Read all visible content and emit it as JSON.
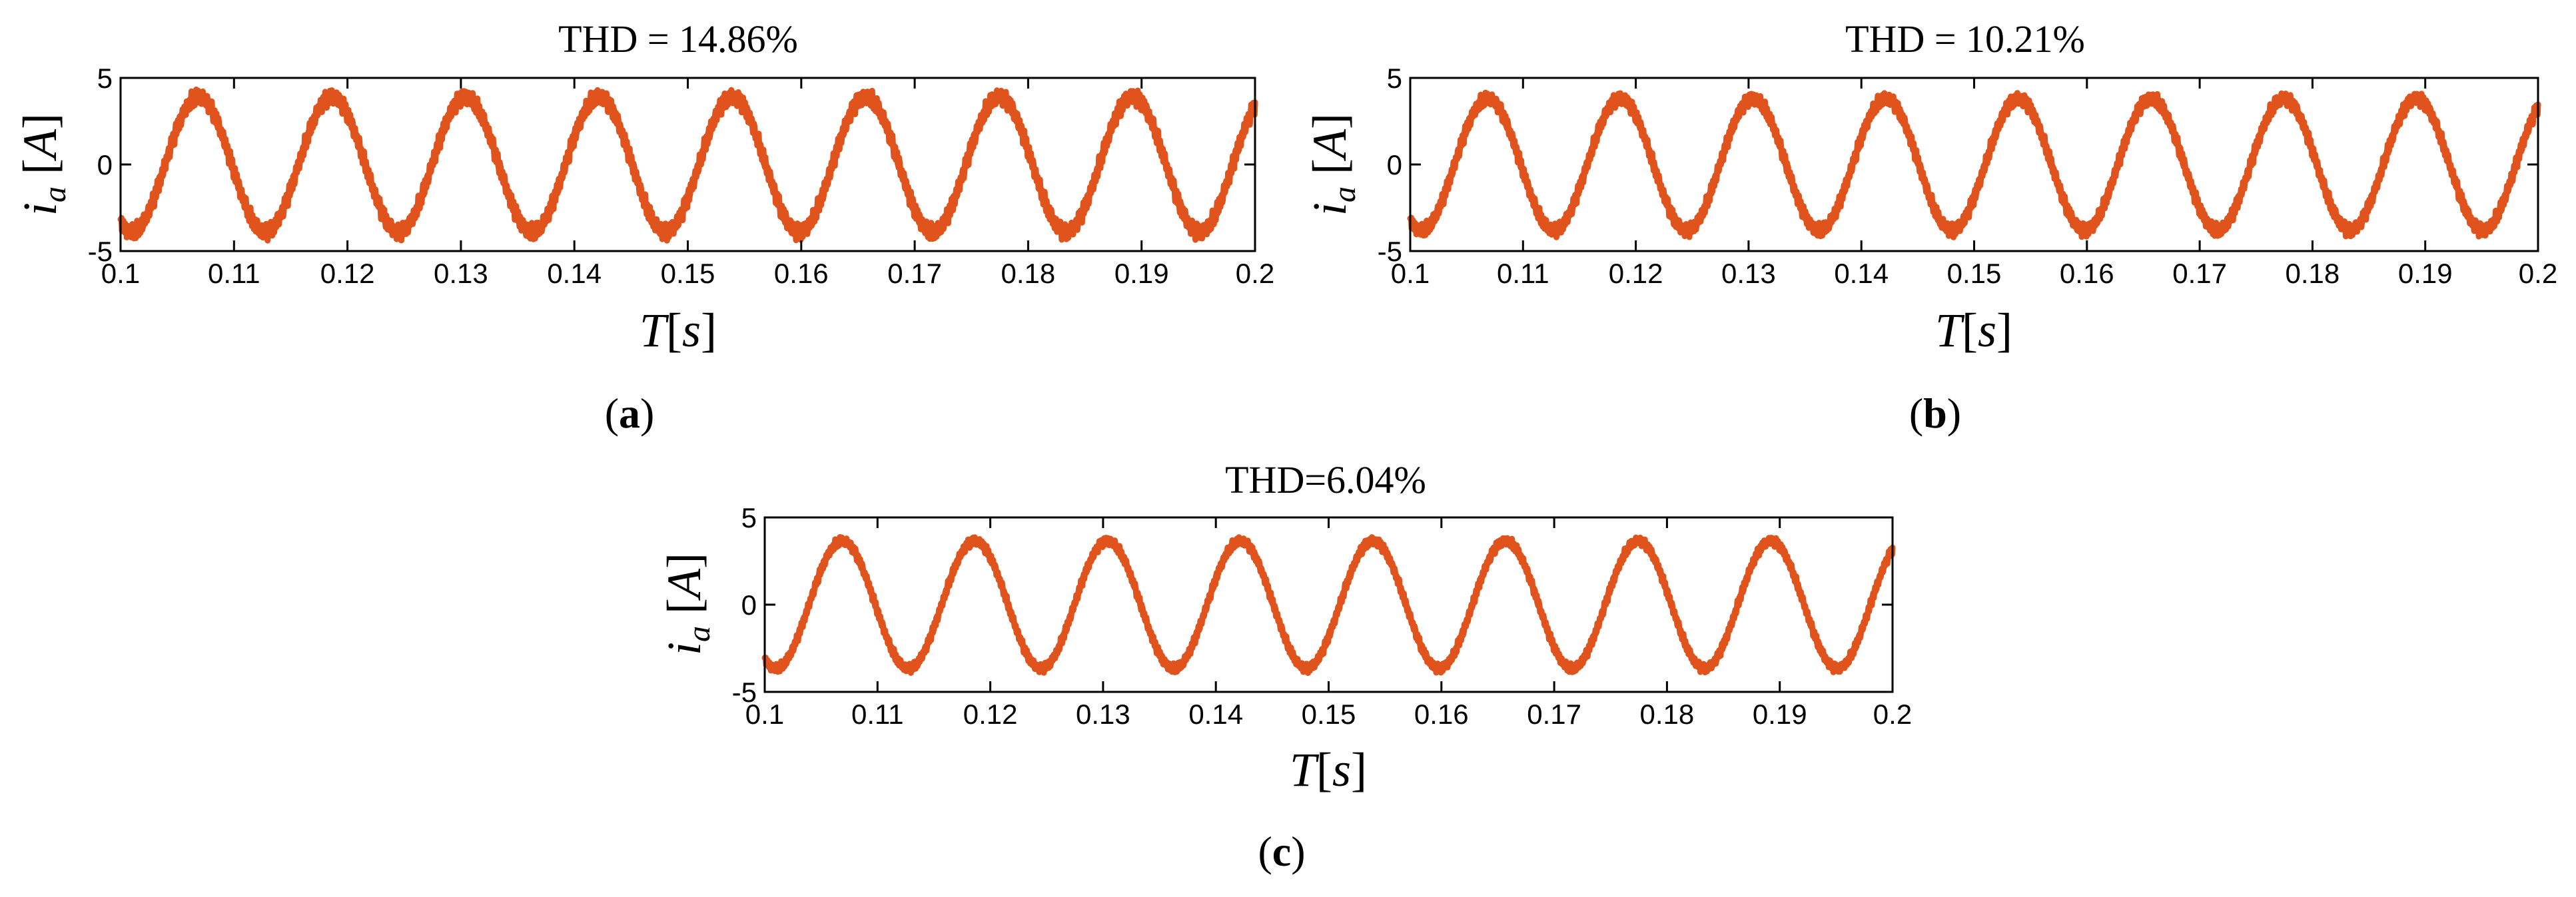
{
  "chart_data": [
    {
      "type": "line",
      "panel": "a",
      "title": "THD = 14.86%",
      "xlabel": "T[s]",
      "ylabel": "i_a [A]",
      "xlim": [
        0.1,
        0.2
      ],
      "ylim": [
        -5,
        5
      ],
      "xticks": [
        "0.1",
        "0.11",
        "0.12",
        "0.13",
        "0.14",
        "0.15",
        "0.16",
        "0.17",
        "0.18",
        "0.19",
        "0.2"
      ],
      "yticks": [
        "5",
        "0",
        "-5"
      ],
      "series": [
        {
          "name": "i_a",
          "frequency_hz": 85,
          "amplitude": 3.9,
          "ripple": 0.55,
          "phase_at_start_deg": 240
        }
      ]
    },
    {
      "type": "line",
      "panel": "b",
      "title": "THD = 10.21%",
      "xlabel": "T[s]",
      "ylabel": "i_a [A]",
      "xlim": [
        0.1,
        0.2
      ],
      "ylim": [
        -5,
        5
      ],
      "xticks": [
        "0.1",
        "0.11",
        "0.12",
        "0.13",
        "0.14",
        "0.15",
        "0.16",
        "0.17",
        "0.18",
        "0.19",
        "0.2"
      ],
      "yticks": [
        "5",
        "0",
        "-5"
      ],
      "series": [
        {
          "name": "i_a",
          "frequency_hz": 85,
          "amplitude": 3.8,
          "ripple": 0.45,
          "phase_at_start_deg": 240
        }
      ]
    },
    {
      "type": "line",
      "panel": "c",
      "title": "THD=6.04%",
      "xlabel": "T[s]",
      "ylabel": "i_a [A]",
      "xlim": [
        0.1,
        0.2
      ],
      "ylim": [
        -5,
        5
      ],
      "xticks": [
        "0.1",
        "0.11",
        "0.12",
        "0.13",
        "0.14",
        "0.15",
        "0.16",
        "0.17",
        "0.18",
        "0.19",
        "0.2"
      ],
      "yticks": [
        "5",
        "0",
        "-5"
      ],
      "series": [
        {
          "name": "i_a",
          "frequency_hz": 85,
          "amplitude": 3.65,
          "ripple": 0.3,
          "phase_at_start_deg": 240
        }
      ]
    }
  ],
  "panel_labels": {
    "a": "a",
    "b": "b",
    "c": "c"
  },
  "colors": {
    "trace": "#E0531C",
    "axes": "#000000",
    "background": "#ffffff"
  }
}
